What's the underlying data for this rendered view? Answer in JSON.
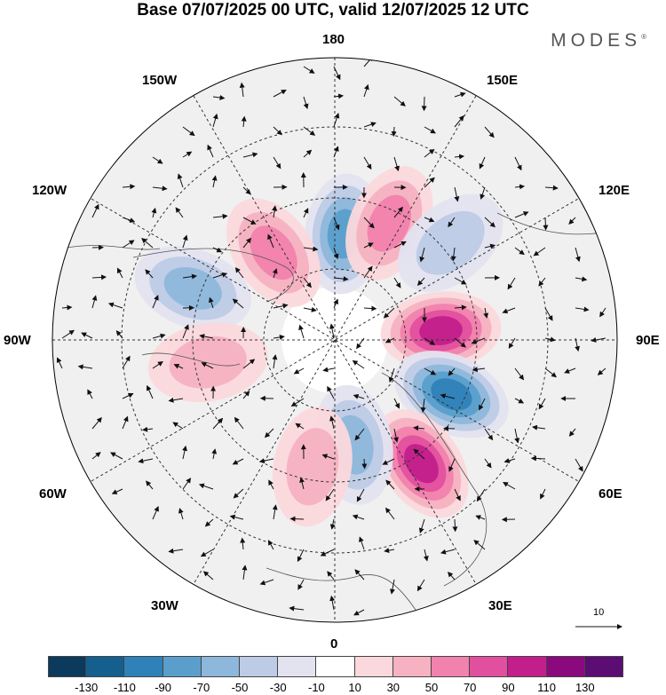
{
  "title": "Base 07/07/2025 00 UTC, valid 12/07/2025 12 UTC",
  "logo": {
    "text": "MODES",
    "mark": "®"
  },
  "longitude_labels": {
    "top": "180",
    "bottom": "0",
    "left": "90W",
    "right": "90E",
    "upper_left": "150W",
    "upper_right": "150E",
    "mid_upper_left": "120W",
    "mid_upper_right": "120E",
    "mid_lower_left": "60W",
    "mid_lower_right": "60E",
    "lower_left": "30W",
    "lower_right": "30E"
  },
  "vector_reference": {
    "value": "10"
  },
  "colorbar": {
    "colors": [
      "#0b3a5c",
      "#155f8f",
      "#2f82b8",
      "#5a9fcb",
      "#8db7db",
      "#bdcbe6",
      "#e3e3f0",
      "#ffffff",
      "#fbd8dc",
      "#f6b2c1",
      "#f182ad",
      "#e1509e",
      "#c21f8c",
      "#8a0a7e",
      "#5b0d73"
    ],
    "tick_labels": [
      "-130",
      "-110",
      "-90",
      "-70",
      "-50",
      "-30",
      "-10",
      "10",
      "30",
      "50",
      "70",
      "90",
      "110",
      "130"
    ]
  },
  "map_data": {
    "projection": "north polar stereographic",
    "anomalies": [
      {
        "lon": 175,
        "value": -70
      },
      {
        "lon": 155,
        "value": 50
      },
      {
        "lon": 130,
        "value": -40
      },
      {
        "lon": 95,
        "value": 100
      },
      {
        "lon": 65,
        "value": -100
      },
      {
        "lon": 35,
        "value": 100
      },
      {
        "lon": 10,
        "value": -60
      },
      {
        "lon": -10,
        "value": 40
      },
      {
        "lon": -110,
        "value": -60
      },
      {
        "lon": -145,
        "value": 50
      },
      {
        "lon": -80,
        "value": 30
      }
    ]
  }
}
